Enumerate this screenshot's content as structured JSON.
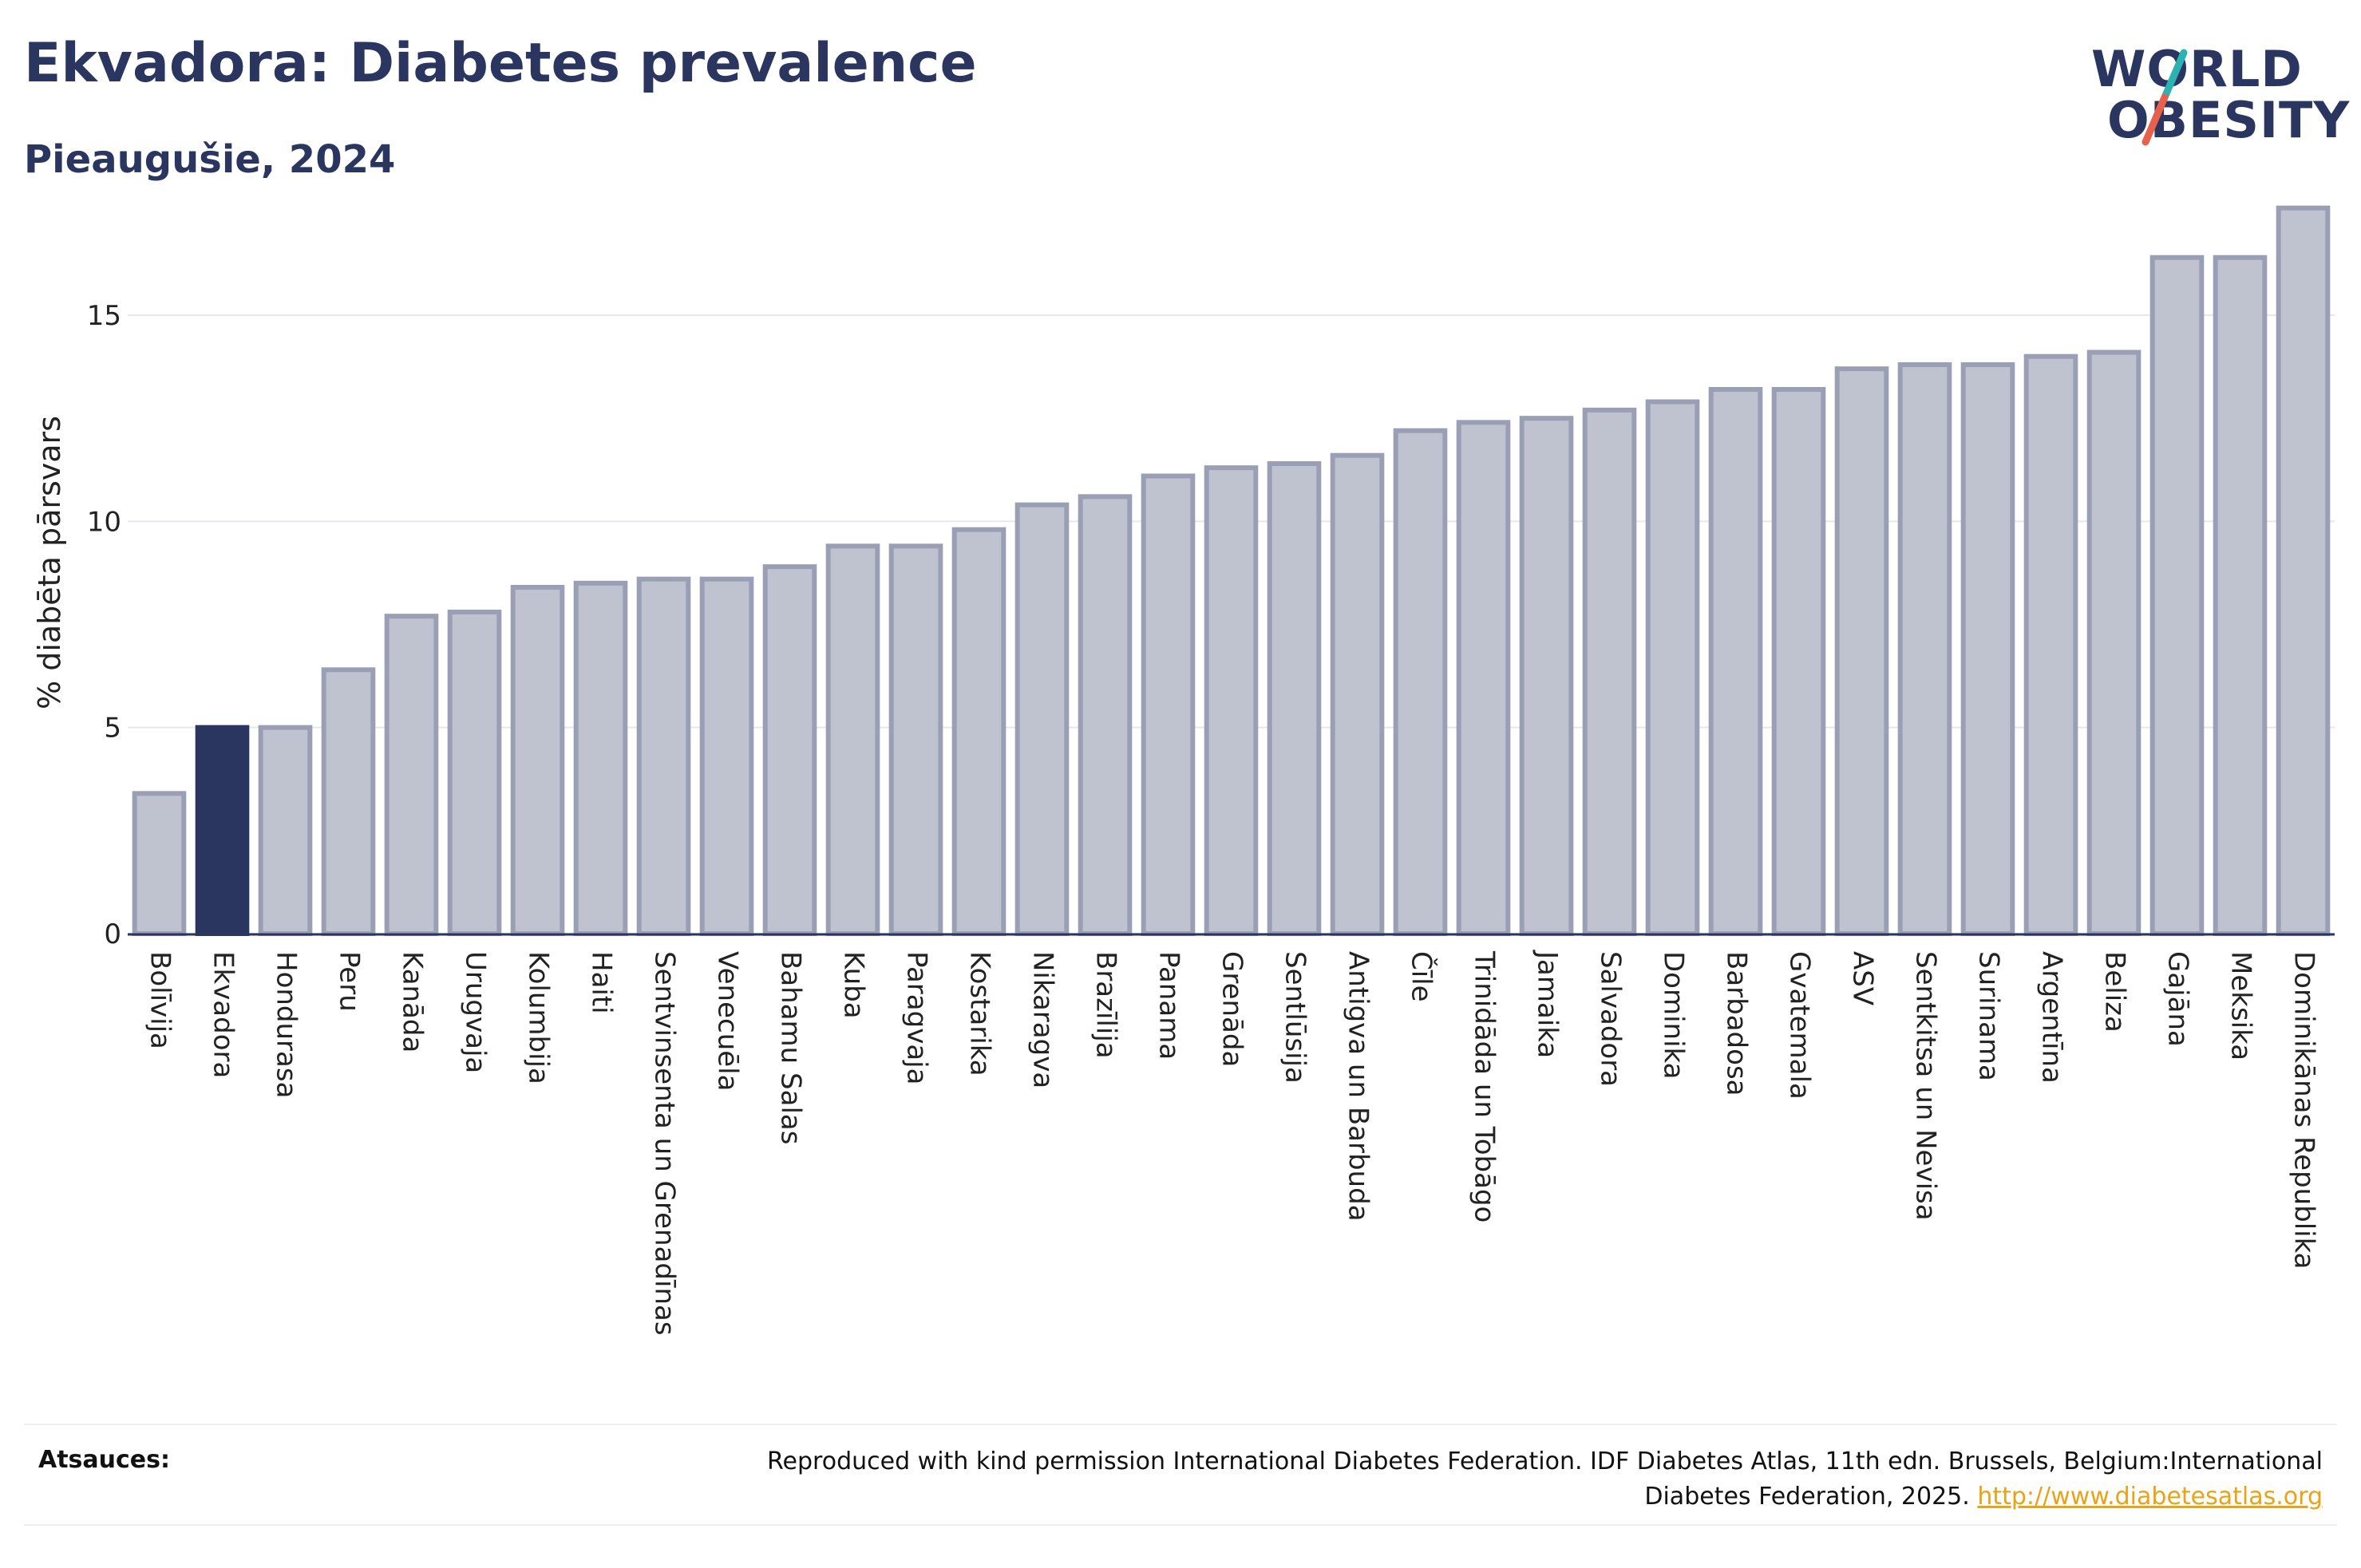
{
  "header": {
    "title": "Ekvadora: Diabetes prevalence",
    "subtitle": "Pieaugušie, 2024"
  },
  "logo": {
    "line1": "WORLD",
    "line2": "OBESITY",
    "colors": {
      "text": "#2a3560",
      "slash_top": "#2ab3b1",
      "slash_bottom": "#e8604c"
    }
  },
  "colors": {
    "bar": "#bfc2cf",
    "bar_border": "#9a9fb5",
    "highlight": "#2a3560",
    "axis": "#2a3560",
    "grid": "#e6e8ec"
  },
  "chart_data": {
    "type": "bar",
    "title": "Ekvadora: Diabetes prevalence",
    "subtitle": "Pieaugušie, 2024",
    "ylabel": "% diabēta pārsvars",
    "xlabel": "",
    "ylim": [
      0,
      18
    ],
    "yticks": [
      0,
      5,
      10,
      15
    ],
    "grid": true,
    "highlight": "Ekvadora",
    "categories": [
      "Bolīvija",
      "Ekvadora",
      "Hondurasa",
      "Peru",
      "Kanāda",
      "Urugvaja",
      "Kolumbija",
      "Haiti",
      "Sentvinsenta un Grenadīnas",
      "Venecuēla",
      "Bahamu Salas",
      "Kuba",
      "Paragvaja",
      "Kostarika",
      "Nikaragva",
      "Brazīlija",
      "Panama",
      "Grenāda",
      "Sentlūsija",
      "Antigva un Barbuda",
      "Čīle",
      "Trinidāda un Tobāgo",
      "Jamaika",
      "Salvadora",
      "Dominika",
      "Barbadosa",
      "Gvatemala",
      "ASV",
      "Sentkitsa un Nevisa",
      "Surinama",
      "Argentīna",
      "Beliza",
      "Gajāna",
      "Meksika",
      "Dominikānas Republika"
    ],
    "values": [
      3.4,
      5.0,
      5.0,
      6.4,
      7.7,
      7.8,
      8.4,
      8.5,
      8.6,
      8.6,
      8.9,
      9.4,
      9.4,
      9.8,
      10.4,
      10.6,
      11.1,
      11.3,
      11.4,
      11.6,
      12.2,
      12.4,
      12.5,
      12.7,
      12.9,
      13.2,
      13.2,
      13.7,
      13.8,
      13.8,
      14.0,
      14.1,
      16.4,
      16.4,
      17.6
    ]
  },
  "footer": {
    "sources_label": "Atsauces:",
    "source_text": "Reproduced with kind permission International Diabetes Federation. IDF Diabetes Atlas, 11th edn. Brussels, Belgium:International Diabetes Federation, 2025.",
    "source_link": "http://www.diabetesatlas.org"
  }
}
